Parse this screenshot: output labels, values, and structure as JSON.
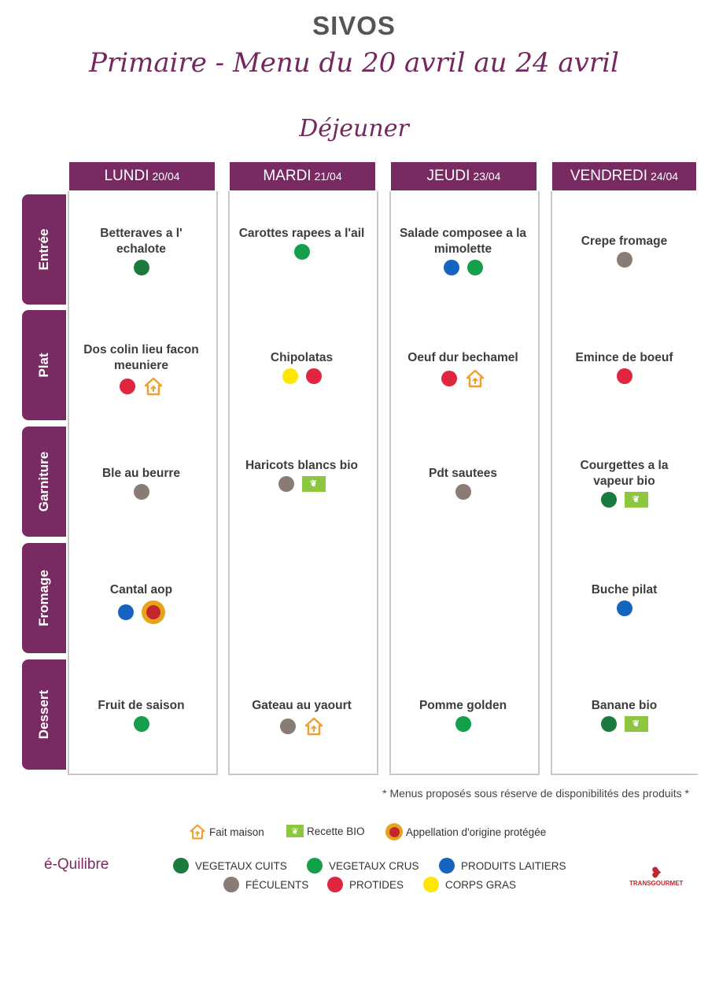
{
  "header": {
    "title": "SIVOS",
    "subtitle": "Primaire - Menu du 20 avril au 24 avril",
    "meal": "Déjeuner"
  },
  "rows": [
    "Entrée",
    "Plat",
    "Garniture",
    "Fromage",
    "Dessert"
  ],
  "days": [
    {
      "name": "LUNDI",
      "date": "20/04"
    },
    {
      "name": "MARDI",
      "date": "21/04"
    },
    {
      "name": "JEUDI",
      "date": "23/04"
    },
    {
      "name": "VENDREDI",
      "date": "24/04"
    }
  ],
  "menu": {
    "lundi": {
      "entree": {
        "label": "Betteraves a l' echalote",
        "tags": [
          "vegetaux-cuits"
        ]
      },
      "plat": {
        "label": "Dos colin lieu facon meuniere",
        "tags": [
          "protides",
          "fait-maison"
        ]
      },
      "garniture": {
        "label": "Ble au beurre",
        "tags": [
          "feculents"
        ]
      },
      "fromage": {
        "label": "Cantal aop",
        "tags": [
          "produits-laitiers",
          "aop"
        ]
      },
      "dessert": {
        "label": "Fruit de saison",
        "tags": [
          "vegetaux-crus"
        ]
      }
    },
    "mardi": {
      "entree": {
        "label": "Carottes rapees a l'ail",
        "tags": [
          "vegetaux-crus"
        ]
      },
      "plat": {
        "label": "Chipolatas",
        "tags": [
          "corps-gras",
          "protides"
        ]
      },
      "garniture": {
        "label": "Haricots blancs bio",
        "tags": [
          "feculents",
          "bio"
        ]
      },
      "fromage": {
        "label": "",
        "tags": []
      },
      "dessert": {
        "label": "Gateau au yaourt",
        "tags": [
          "feculents",
          "fait-maison"
        ]
      }
    },
    "jeudi": {
      "entree": {
        "label": "Salade composee a la mimolette",
        "tags": [
          "produits-laitiers",
          "vegetaux-crus"
        ]
      },
      "plat": {
        "label": "Oeuf dur bechamel",
        "tags": [
          "protides",
          "fait-maison"
        ]
      },
      "garniture": {
        "label": "Pdt sautees",
        "tags": [
          "feculents"
        ]
      },
      "fromage": {
        "label": "",
        "tags": []
      },
      "dessert": {
        "label": "Pomme golden",
        "tags": [
          "vegetaux-crus"
        ]
      }
    },
    "vendredi": {
      "entree": {
        "label": "Crepe fromage",
        "tags": [
          "feculents"
        ]
      },
      "plat": {
        "label": "Emince de boeuf",
        "tags": [
          "protides"
        ]
      },
      "garniture": {
        "label": "Courgettes a la vapeur bio",
        "tags": [
          "vegetaux-cuits",
          "bio"
        ]
      },
      "fromage": {
        "label": "Buche pilat",
        "tags": [
          "produits-laitiers"
        ]
      },
      "dessert": {
        "label": "Banane bio",
        "tags": [
          "vegetaux-cuits",
          "bio"
        ]
      }
    }
  },
  "note": "* Menus proposés sous réserve de disponibilités des produits *",
  "legend": {
    "fait_maison": "Fait maison",
    "bio": "Recette BIO",
    "aop": "Appellation d'origine protégée",
    "vegetaux_cuits": "VEGETAUX CUITS",
    "vegetaux_crus": "VEGETAUX CRUS",
    "produits_laitiers": "PRODUITS LAITIERS",
    "feculents": "FÉCULENTS",
    "protides": "PROTIDES",
    "corps_gras": "CORPS GRAS"
  },
  "logos": {
    "left": "é-Quilibre",
    "right": "TRANSGOURMET"
  },
  "colors": {
    "brand": "#7a2a63",
    "vegetaux_cuits": "#1b7a3e",
    "vegetaux_crus": "#14a04a",
    "produits_laitiers": "#1565c0",
    "feculents": "#8b7b75",
    "protides": "#e0253f",
    "corps_gras": "#ffe600",
    "fait_maison": "#f0a030",
    "bio": "#8dc63f"
  }
}
